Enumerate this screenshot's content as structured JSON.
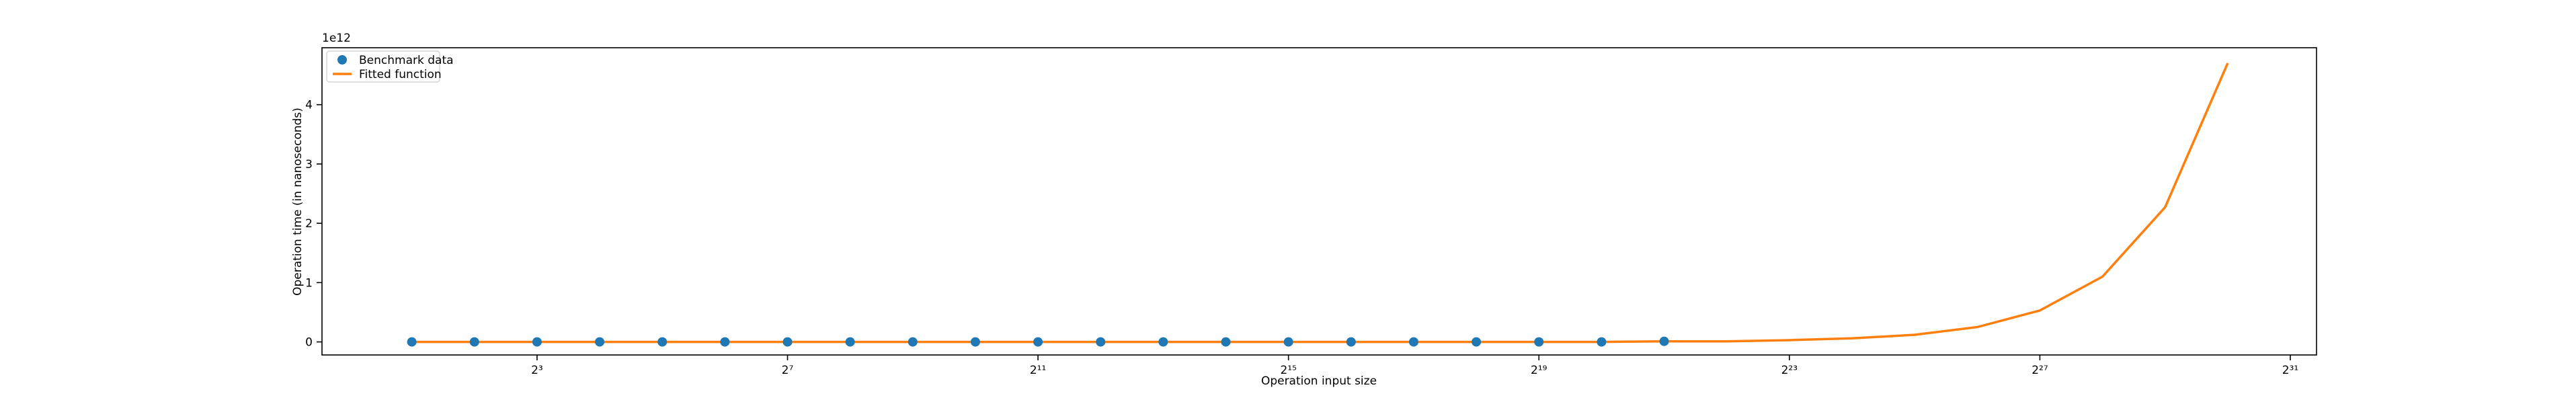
{
  "chart_data": {
    "type": "scatter",
    "x_label": "Operation input size",
    "y_label": "Operation time (in nanoseconds)",
    "y_offset_label": "1e12",
    "log_x": 2,
    "xlim": [
      0.74,
      2870000000
    ],
    "xticks": [
      {
        "value": 8,
        "label": "2³"
      },
      {
        "value": 128,
        "label": "2⁷"
      },
      {
        "value": 2048,
        "label": "2¹¹"
      },
      {
        "value": 32768,
        "label": "2¹⁵"
      },
      {
        "value": 524288,
        "label": "2¹⁹"
      },
      {
        "value": 8388608,
        "label": "2²³"
      },
      {
        "value": 134217728,
        "label": "2²⁷"
      },
      {
        "value": 2147483648,
        "label": "2³¹"
      }
    ],
    "ylim": [
      -0.22,
      4.96
    ],
    "yticks": [
      0,
      1,
      2,
      3,
      4
    ],
    "legend": "upper left",
    "series": [
      {
        "name": "Benchmark data",
        "type": "scatter",
        "color": "#1f77b4",
        "x": [
          2,
          4,
          8,
          16,
          32,
          64,
          128,
          256,
          512,
          1024,
          2048,
          4096,
          8192,
          16384,
          32768,
          65536,
          131072,
          262144,
          524288,
          1048576,
          2097152
        ],
        "values": [
          0,
          0,
          0,
          0,
          0,
          0,
          0,
          0,
          0,
          0,
          0,
          0,
          0,
          0,
          0,
          0,
          0,
          0,
          0,
          0,
          0.01
        ]
      },
      {
        "name": "Fitted function",
        "type": "line",
        "color": "#ff7f0e",
        "x": [
          2,
          4,
          8,
          16,
          32,
          64,
          128,
          256,
          512,
          1024,
          2048,
          4096,
          8192,
          16384,
          32768,
          65536,
          131072,
          262144,
          524288,
          1048576,
          2097152,
          4194304,
          8388608,
          16777216,
          33554432,
          67108864,
          134217728,
          268435456,
          536870912,
          1073741824
        ],
        "values": [
          0,
          0,
          0,
          0,
          0,
          0,
          0,
          0,
          0,
          0,
          0,
          0,
          0,
          0,
          0,
          0,
          0,
          0,
          0,
          0,
          0.01,
          0.01,
          0.03,
          0.06,
          0.12,
          0.25,
          0.53,
          1.1,
          2.27,
          4.7
        ]
      }
    ]
  }
}
